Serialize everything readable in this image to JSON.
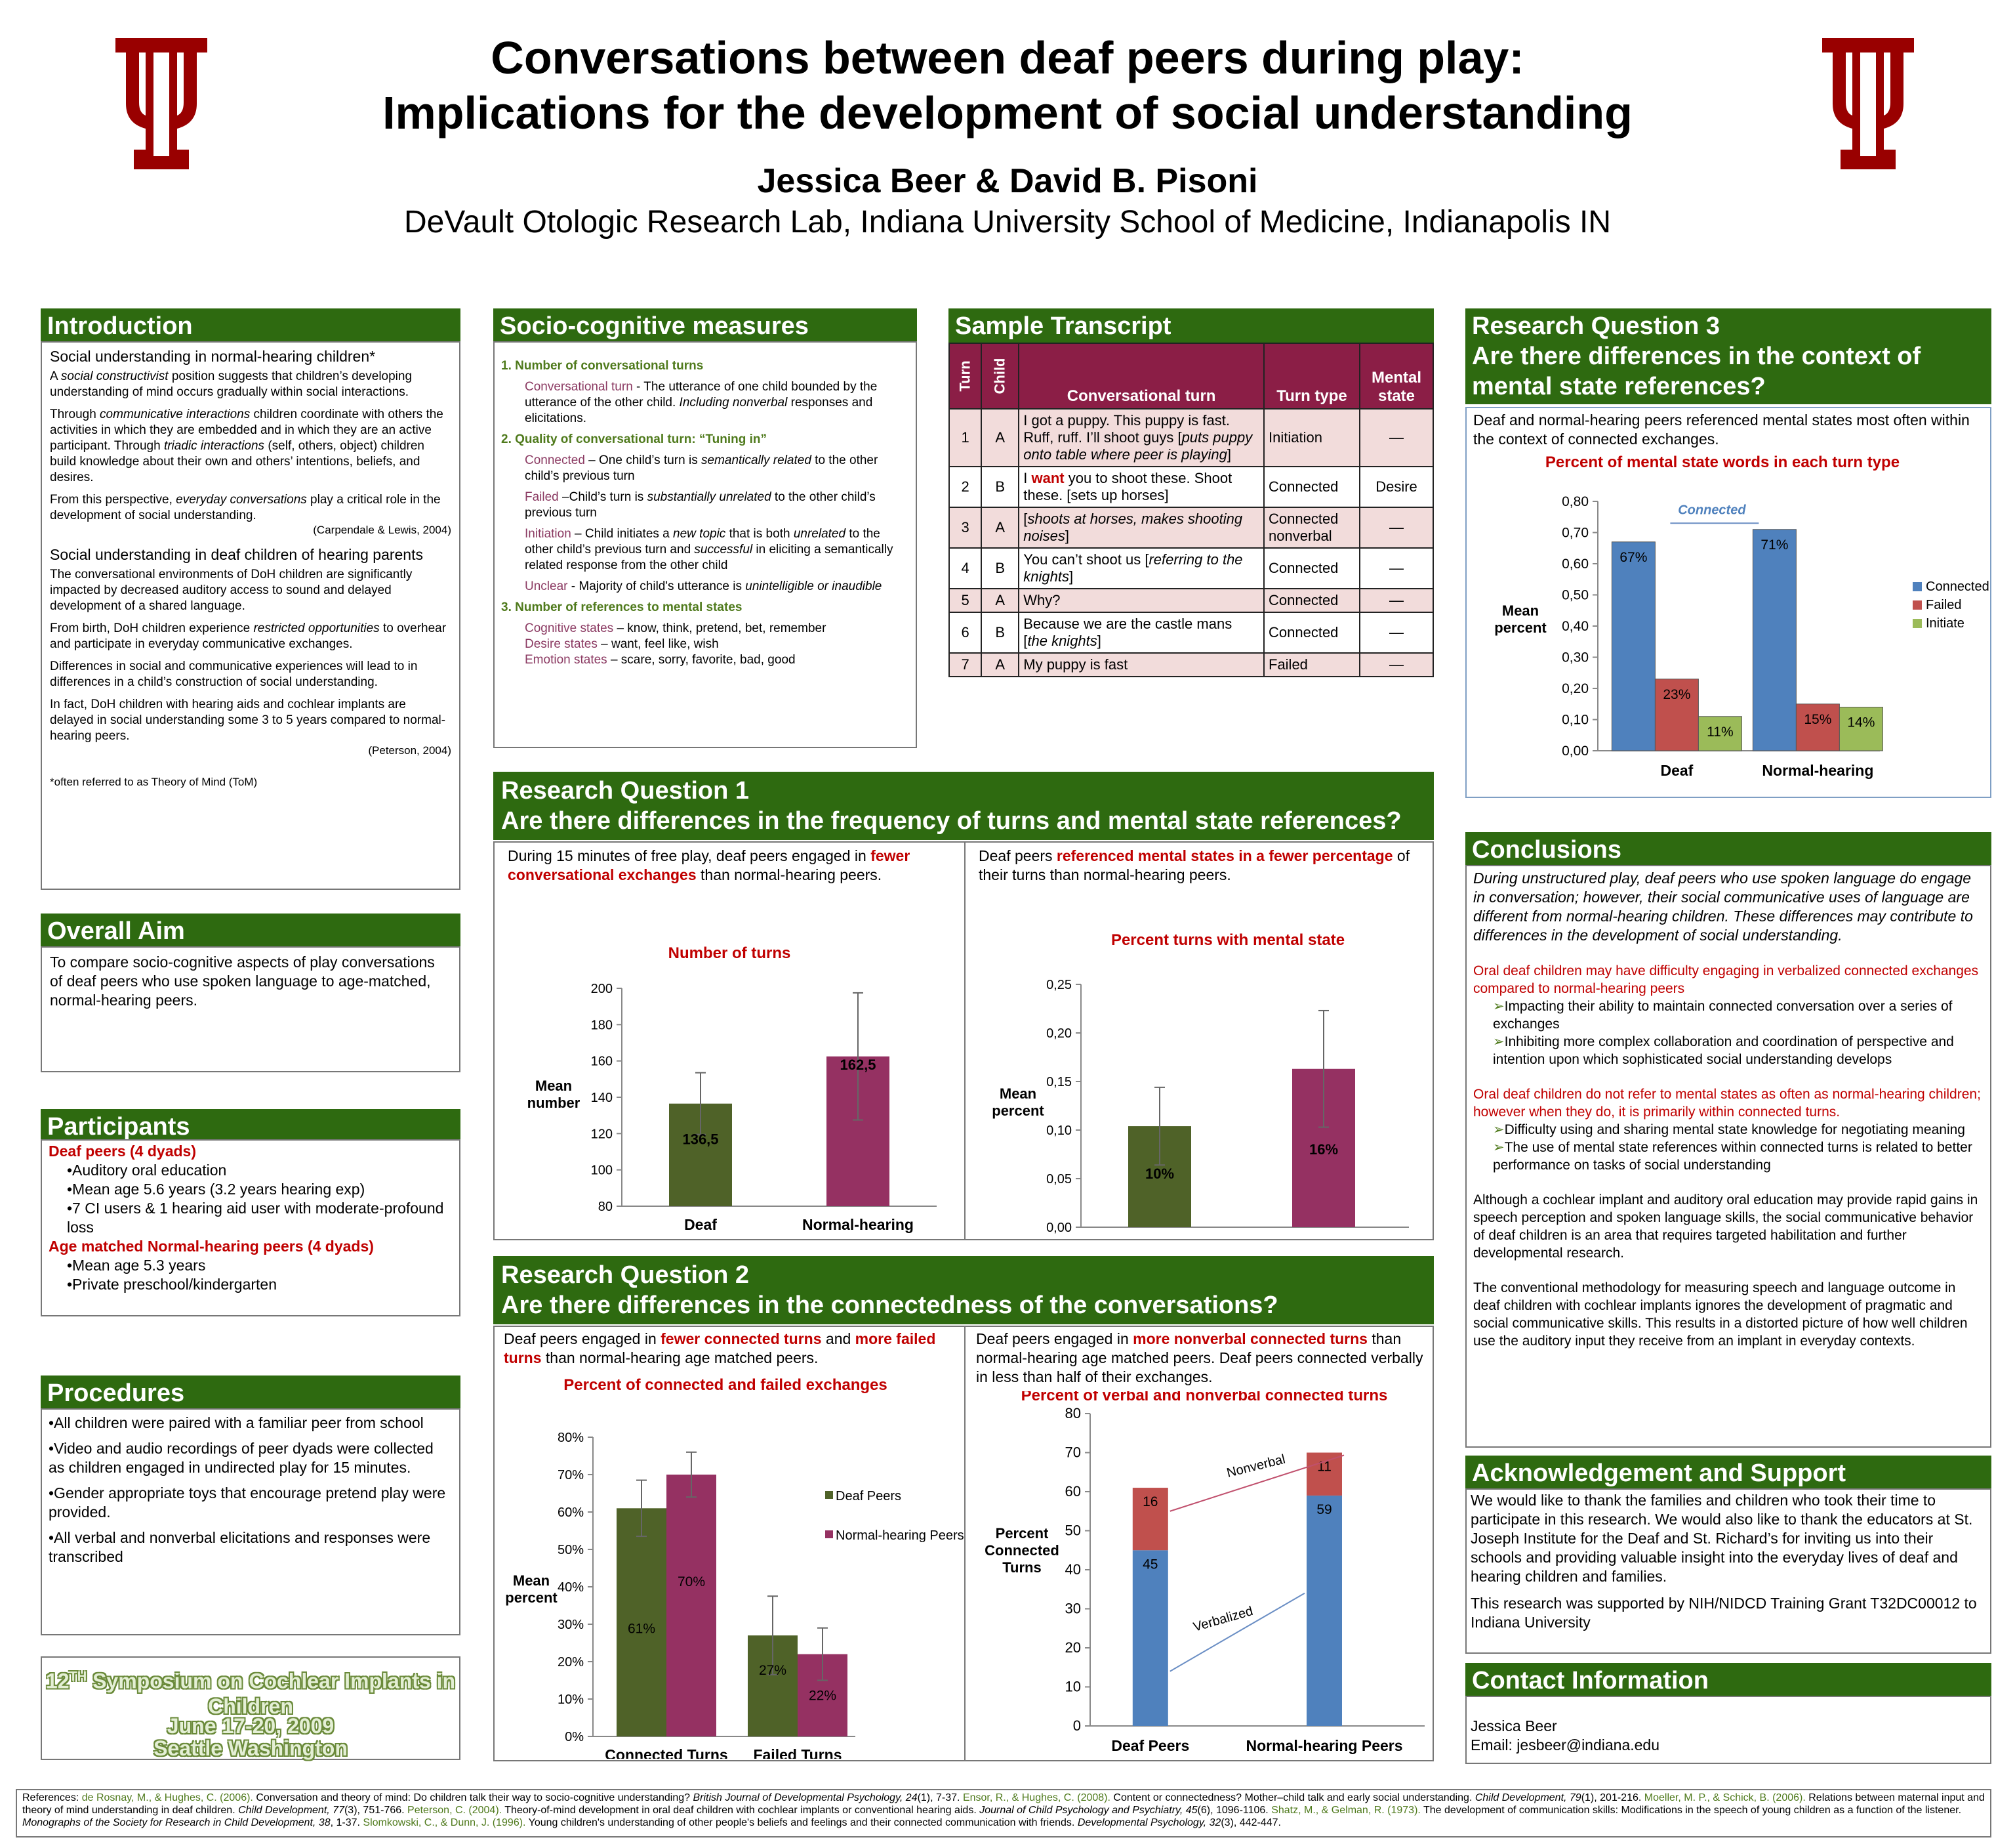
{
  "title": {
    "line1": "Conversations between deaf peers during play:",
    "line2": "Implications for the development of social understanding",
    "authors": "Jessica Beer & David B. Pisoni",
    "affiliation": "DeVault Otologic Research Lab, Indiana University School of Medicine, Indianapolis IN"
  },
  "colors": {
    "header_green": "#2e6a10",
    "accent_red": "#c00000",
    "iu_crimson": "#990000",
    "bar_blue": "#4f81bd",
    "bar_red": "#c0504d",
    "bar_green": "#9bbb59",
    "bar_olive": "#4f6228",
    "bar_magenta": "#953162"
  },
  "intro": {
    "header": "Introduction",
    "sub1": "Social understanding in normal-hearing children*",
    "p1a": "A ",
    "p1b": "social constructivist",
    "p1c": " position suggests that children’s developing understanding of mind occurs gradually within social interactions.",
    "p2a": "Through ",
    "p2b": "communicative interactions",
    "p2c": " children coordinate with others the activities in which they are embedded and in which they are an active participant. Through ",
    "p2d": "triadic interactions",
    "p2e": " (self, others, object) children build knowledge about their own and others’ intentions, beliefs, and desires.",
    "p3a": "From this perspective, ",
    "p3b": "everyday conversations",
    "p3c": " play a critical role in the development of social understanding.",
    "cite1": "(Carpendale & Lewis, 2004)",
    "sub2": "Social understanding in deaf children of hearing parents",
    "p4": "The conversational environments of DoH children are significantly impacted by decreased auditory access to sound and delayed development of a shared language.",
    "p5a": "From birth, DoH children experience ",
    "p5b": "restricted opportunities",
    "p5c": " to overhear and participate in everyday communicative exchanges.",
    "p6": "Differences in social and communicative experiences will lead to in differences in a child’s construction of social understanding.",
    "p7": "In fact, DoH children with hearing aids and cochlear implants are delayed in social understanding some 3 to 5 years compared to normal-hearing peers.",
    "cite2": "(Peterson, 2004)",
    "footnote": "*often referred to as Theory of Mind (ToM)"
  },
  "aim": {
    "header": "Overall Aim",
    "text": "To compare socio-cognitive aspects of play conversations of deaf peers who use spoken language to age-matched, normal-hearing peers."
  },
  "participants": {
    "header": "Participants",
    "deaf_title": "Deaf peers (4 dyads)",
    "deaf_items": [
      "•Auditory oral education",
      "•Mean age 5.6 years (3.2 years hearing exp)",
      "•7 CI users & 1 hearing aid user with moderate-profound loss"
    ],
    "nh_title": "Age matched Normal-hearing peers (4 dyads)",
    "nh_items": [
      "•Mean age 5.3 years",
      "•Private preschool/kindergarten"
    ]
  },
  "procedures": {
    "header": "Procedures",
    "items": [
      "•All children were paired with a familiar peer from school",
      "•Video and audio recordings of peer dyads were collected as children engaged in undirected play for 15 minutes.",
      "•Gender appropriate toys that encourage pretend play were provided.",
      "•All verbal and nonverbal elicitations and responses were transcribed"
    ]
  },
  "symposium": {
    "line1": "12",
    "sup": "TH",
    "line1b": " Symposium on Cochlear Implants in Children",
    "line2": "June 17-20, 2009",
    "line3": "Seattle Washington"
  },
  "measures": {
    "header": "Socio-cognitive measures",
    "h1": "1.  Number of conversational turns",
    "ct_label": "Conversational turn",
    "ct_a": " - The utterance of one child bounded by the utterance of the other child. ",
    "ct_b": "Including nonverbal",
    "ct_c": " responses and elicitations.",
    "h2": "2.  Quality of conversational turn: “Tuning in”",
    "con_label": "Connected",
    "con_a": " – One child’s turn is ",
    "con_b": "semantically related",
    "con_c": " to the other child’s previous turn",
    "fail_label": "Failed",
    "fail_a": " –Child’s turn is ",
    "fail_b": "substantially unrelated",
    "fail_c": " to the other child’s previous turn",
    "init_label": "Initiation",
    "init_a": " – Child initiates a ",
    "init_b": "new topic",
    "init_c": " that is both ",
    "init_d": "unrelated",
    "init_e": " to the other child’s previous turn and ",
    "init_f": "successful",
    "init_g": " in eliciting a semantically related response from the other child",
    "unc_label": "Unclear",
    "unc_a": " - Majority of child's utterance is ",
    "unc_b": "unintelligible or inaudible",
    "h3": "3.  Number of references to mental states",
    "cog_label": "Cognitive states",
    "cog_text": " – know, think, pretend, bet, remember",
    "des_label": "Desire states",
    "des_text": " – want, feel like, wish",
    "emo_label": "Emotion states",
    "emo_text": " – scare, sorry, favorite, bad, good"
  },
  "transcript": {
    "header": "Sample Transcript",
    "cols": [
      "Turn",
      "Child",
      "Conversational turn",
      "Turn type",
      "Mental state"
    ],
    "rows": [
      {
        "turn": "1",
        "child": "A",
        "a": "I got a puppy. This puppy is fast. Ruff, ruff. I’ll shoot guys [",
        "b": "puts puppy onto table where peer is playing",
        "c": "]",
        "type": "Initiation",
        "ms": "—"
      },
      {
        "turn": "2",
        "child": "B",
        "pre": "I ",
        "want": "want",
        "a": " you to shoot these. Shoot these. [sets up horses]",
        "type": "Connected",
        "ms": "Desire"
      },
      {
        "turn": "3",
        "child": "A",
        "a": "[",
        "b": "shoots at horses, makes shooting noises",
        "c": "]",
        "type": "Connected nonverbal",
        "ms": "—"
      },
      {
        "turn": "4",
        "child": "B",
        "a": "You can’t shoot us [",
        "b": "referring to the knights",
        "c": "]",
        "type": "Connected",
        "ms": "—"
      },
      {
        "turn": "5",
        "child": "A",
        "a": "Why?",
        "type": "Connected",
        "ms": "—"
      },
      {
        "turn": "6",
        "child": "B",
        "a": "Because we are the castle mans [",
        "b": "the knights",
        "c": "]",
        "type": "Connected",
        "ms": "—"
      },
      {
        "turn": "7",
        "child": "A",
        "a": "My puppy is fast",
        "type": "Failed",
        "ms": "—"
      }
    ]
  },
  "rq1": {
    "title1": "Research Question 1",
    "title2": "Are there differences in the frequency of turns and mental state references?",
    "left_a": "During 15 minutes of free play, deaf peers engaged in ",
    "left_b": "fewer conversational exchanges",
    "left_c": " than normal-hearing peers.",
    "right_a": "Deaf peers ",
    "right_b": "referenced mental states in a fewer percentage",
    "right_c": " of their turns than normal-hearing peers."
  },
  "rq2": {
    "title1": "Research Question  2",
    "title2": "Are there differences in the connectedness of the conversations?",
    "left_a": "Deaf peers engaged in ",
    "left_b": "fewer connected turns",
    "left_c": " and ",
    "left_d": "more failed turns",
    "left_e": " than normal-hearing age matched peers.",
    "right_a": "Deaf peers engaged in ",
    "right_b": "more nonverbal connected turns",
    "right_c": " than normal-hearing age matched peers. Deaf peers connected verbally in less than half of their exchanges."
  },
  "rq3": {
    "title1": "Research Question 3",
    "title2": "Are there differences in the context of",
    "title3": "mental state references?",
    "text": "Deaf and normal-hearing peers referenced mental states most often within the context of connected exchanges."
  },
  "conclusions": {
    "header": "Conclusions",
    "intro": "During unstructured play, deaf peers who use spoken language do engage in conversation; however, their social communicative uses of language are different from normal-hearing children. These differences may contribute to differences in the development of social understanding.",
    "r1": "Oral deaf children may have difficulty engaging in verbalized connected exchanges compared to normal-hearing peers",
    "b1": "Impacting their ability to maintain connected conversation over a series of exchanges",
    "b2": "Inhibiting more complex collaboration and coordination of perspective and intention upon which sophisticated social understanding develops",
    "r2": "Oral deaf children do not refer to mental states as often as normal-hearing children; however when they do, it is primarily within connected turns.",
    "b3": "Difficulty using and sharing mental state knowledge for negotiating meaning",
    "b4": "The use of mental state references within connected turns is related to better performance on tasks of social understanding",
    "p1": "Although a cochlear implant and auditory oral education may provide rapid gains in speech perception and spoken language skills, the social communicative behavior of deaf children is an area that requires targeted habilitation and further developmental research.",
    "p2": "The conventional methodology for measuring speech and language outcome in deaf children  with cochlear implants ignores the development of pragmatic and social communicative skills. This results in a distorted picture of how well children use the auditory input they receive from an implant in everyday contexts."
  },
  "ack": {
    "header": "Acknowledgement and Support",
    "p1": "We would like to thank the families and children who took their time to participate in this research. We would also like to thank the educators at St. Joseph Institute for the Deaf and St. Richard’s for inviting us into their schools and providing valuable insight into the everyday lives of deaf and hearing children and families.",
    "p2": "This research was supported by NIH/NIDCD Training Grant T32DC00012 to Indiana University"
  },
  "contact": {
    "header": "Contact Information",
    "name": "Jessica Beer",
    "email": "Email: jesbeer@indiana.edu"
  },
  "references": {
    "label": "References: ",
    "r1a": "de Rosnay, M., & Hughes, C. (2006).",
    "r1b": " Conversation and theory of mind: Do children talk their way to socio-cognitive understanding? ",
    "r1c": "British Journal of Developmental Psychology, 24",
    "r1d": "(1), 7-37.  ",
    "r2a": "Ensor, R., & Hughes, C. (2008).",
    "r2b": " Content or connectedness? Mother–child talk and early social understanding. ",
    "r2c": "Child Development, 79",
    "r2d": "(1), 201-216. ",
    "r3a": "Moeller, M. P., & Schick, B. (2006).",
    "r3b": " Relations between maternal input and theory of mind understanding in deaf children. ",
    "r3c": "Child Development, 77",
    "r3d": "(3), 751-766.  ",
    "r4a": "Peterson, C. (2004).",
    "r4b": " Theory-of-mind development in oral deaf children with cochlear implants or conventional hearing aids. ",
    "r4c": "Journal of Child Psychology and Psychiatry, 45",
    "r4d": "(6), 1096-1106. ",
    "r5a": "Shatz, M., & Gelman, R. (1973).",
    "r5b": " The development of communication skills: Modifications in the speech of young children as a function of the listener. ",
    "r5c": "Monographs of the Society for Research in Child Development, 38",
    "r5d": ", 1-37.  ",
    "r6a": "Slomkowski, C., & Dunn, J. (1996).",
    "r6b": " Young children's understanding of other people's beliefs and feelings and their connected communication with friends. ",
    "r6c": "Developmental Psychology, 32",
    "r6d": "(3), 442-447."
  },
  "chart_data": [
    {
      "id": "turns",
      "type": "bar",
      "title": "Number of turns",
      "ylabel": "Mean number",
      "categories": [
        "Deaf",
        "Normal-hearing"
      ],
      "values": [
        136.5,
        162.5
      ],
      "labels": [
        "136,5",
        "162,5"
      ],
      "errors": [
        17,
        35
      ],
      "ylim": [
        80,
        200
      ],
      "ticks": [
        "80",
        "100",
        "120",
        "140",
        "160",
        "180",
        "200"
      ]
    },
    {
      "id": "mental",
      "type": "bar",
      "title": "Percent turns with mental state",
      "ylabel": "Mean percent",
      "categories": [
        "Deaf",
        "Normal-hearing"
      ],
      "values": [
        0.104,
        0.163
      ],
      "labels": [
        "10%",
        "16%"
      ],
      "errors": [
        0.04,
        0.06
      ],
      "ylim": [
        0,
        0.25
      ],
      "ticks": [
        "0,00",
        "0,05",
        "0,10",
        "0,15",
        "0,20",
        "0,25"
      ]
    },
    {
      "id": "connected_failed",
      "type": "bar",
      "title": "Percent of connected and failed exchanges",
      "ylabel": "Mean percent",
      "categories": [
        "Connected Turns",
        "Failed Turns"
      ],
      "series": [
        {
          "name": "Deaf Peers",
          "values": [
            61,
            27
          ],
          "labels": [
            "61%",
            "27%"
          ],
          "errors": [
            7.5,
            10.5
          ]
        },
        {
          "name": "Normal-hearing Peers",
          "values": [
            70,
            22
          ],
          "labels": [
            "70%",
            "22%"
          ],
          "errors": [
            6,
            7
          ]
        }
      ],
      "ylim": [
        0,
        80
      ],
      "ticks": [
        "0%",
        "10%",
        "20%",
        "30%",
        "40%",
        "50%",
        "60%",
        "70%",
        "80%"
      ]
    },
    {
      "id": "verbal_nonverbal",
      "type": "bar",
      "title": "Percent of verbal and nonverbal connected turns",
      "ylabel": "Percent Connected Turns",
      "categories": [
        "Deaf Peers",
        "Normal-hearing Peers"
      ],
      "series": [
        {
          "name": "Verbalized",
          "values": [
            45,
            59
          ],
          "labels": [
            "45",
            "59"
          ]
        },
        {
          "name": "Nonverbal",
          "values": [
            16,
            11
          ],
          "labels": [
            "16",
            "11"
          ]
        }
      ],
      "annotations": [
        "Nonverbal",
        "Verbalized"
      ],
      "ylim": [
        0,
        80
      ],
      "ticks": [
        "0",
        "10",
        "20",
        "30",
        "40",
        "50",
        "60",
        "70",
        "80"
      ]
    },
    {
      "id": "turn_type",
      "type": "bar",
      "title": "Percent of mental state words in each turn type",
      "ylabel": "Mean percent",
      "categories": [
        "Deaf",
        "Normal-hearing"
      ],
      "series": [
        {
          "name": "Connected",
          "values": [
            0.67,
            0.71
          ],
          "labels": [
            "67%",
            "71%"
          ]
        },
        {
          "name": "Failed",
          "values": [
            0.23,
            0.15
          ],
          "labels": [
            "23%",
            "15%"
          ]
        },
        {
          "name": "Initiate",
          "values": [
            0.11,
            0.14
          ],
          "labels": [
            "11%",
            "14%"
          ]
        }
      ],
      "annotation": "Connected",
      "ylim": [
        0,
        0.8
      ],
      "ticks": [
        "0,00",
        "0,10",
        "0,20",
        "0,30",
        "0,40",
        "0,50",
        "0,60",
        "0,70",
        "0,80"
      ]
    }
  ]
}
